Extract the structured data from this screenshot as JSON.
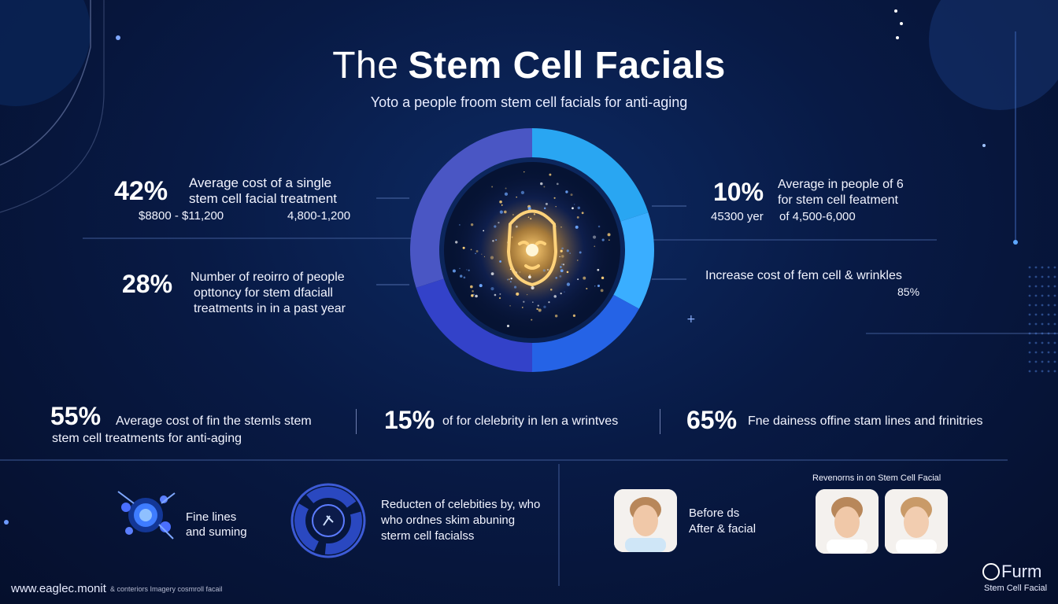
{
  "title_light": "The",
  "title_bold": "Stem Cell Facials",
  "subtitle": "Yoto a people froom stem cell  facials for anti-aging",
  "left_stats": [
    {
      "pct": "42%",
      "line1": "Average cost of a single",
      "line2": "stem cell facial treatment",
      "value_a": "$8800 - $11,200",
      "value_b": "4,800-1,200"
    },
    {
      "pct": "28%",
      "line1": "Number of reoirro of people",
      "line2": "opttoncy for stem dfaciall",
      "line3": "treatments in in a past year"
    }
  ],
  "right_stats": [
    {
      "pct": "10%",
      "line1": "Average in people of 6",
      "line2": "for stem cell featment",
      "value_a": "45300 yer",
      "value_b": "of 4,500-6,000"
    },
    {
      "line1": "Increase cost of fem cell & wrinkles",
      "value": "85%"
    }
  ],
  "bottom_stats": [
    {
      "pct": "55%",
      "line1": "Average cost of fin the stemls stem",
      "line2": "stem cell treatments for anti-aging"
    },
    {
      "pct": "15%",
      "text": "of for clelebrity in len a wrintves"
    },
    {
      "pct": "65%",
      "text": "Fne dainess offine stam lines and frinitries"
    }
  ],
  "features": {
    "fine_lines": "Fine lines\nand suming",
    "reduction": "Reducten of celebities by, who\nwho ordnes skim abuning\nsterm cell facialss",
    "before_after": "Before ds\nAfter & facial",
    "reviews_title": "Revenorns in on Stem Cell Facial"
  },
  "donut_data": {
    "segments": [
      {
        "color": "#29a6f2",
        "fraction": 0.2
      },
      {
        "color": "#3aaeff",
        "fraction": 0.13
      },
      {
        "color": "#2563e6",
        "fraction": 0.17
      },
      {
        "color": "#3342c9",
        "fraction": 0.2
      },
      {
        "color": "#4a56c4",
        "fraction": 0.3
      }
    ]
  },
  "footer": {
    "url": "www.eaglec.monit",
    "url_note": "& conteriors Imagery cosmroll facail",
    "brand": "Furm",
    "brand_sub": "Stem Cell Facial"
  },
  "colors": {
    "accent": "#3aaeff",
    "bg": "#081a45"
  }
}
